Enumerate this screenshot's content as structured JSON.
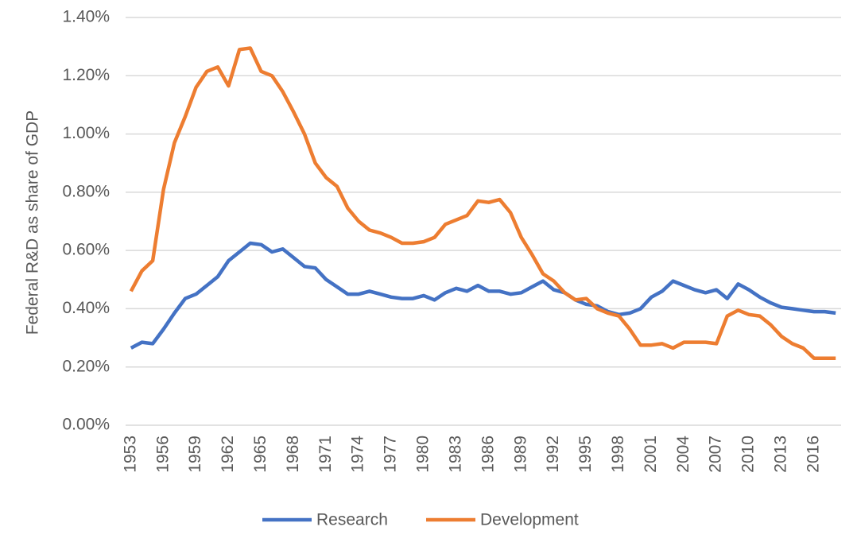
{
  "chart_data": {
    "type": "line",
    "y_label": "Federal R&D as share of GDP",
    "x": [
      1953,
      1954,
      1955,
      1956,
      1957,
      1958,
      1959,
      1960,
      1961,
      1962,
      1963,
      1964,
      1965,
      1966,
      1967,
      1968,
      1969,
      1970,
      1971,
      1972,
      1973,
      1974,
      1975,
      1976,
      1977,
      1978,
      1979,
      1980,
      1981,
      1982,
      1983,
      1984,
      1985,
      1986,
      1987,
      1988,
      1989,
      1990,
      1991,
      1992,
      1993,
      1994,
      1995,
      1996,
      1997,
      1998,
      1999,
      2000,
      2001,
      2002,
      2003,
      2004,
      2005,
      2006,
      2007,
      2008,
      2009,
      2010,
      2011,
      2012,
      2013,
      2014,
      2015,
      2016,
      2017,
      2018
    ],
    "series": [
      {
        "name": "Research",
        "color": "#4472c4",
        "values": [
          0.265,
          0.285,
          0.28,
          0.33,
          0.385,
          0.435,
          0.45,
          0.48,
          0.51,
          0.565,
          0.595,
          0.625,
          0.62,
          0.595,
          0.605,
          0.575,
          0.545,
          0.54,
          0.5,
          0.475,
          0.45,
          0.45,
          0.46,
          0.45,
          0.44,
          0.435,
          0.435,
          0.445,
          0.43,
          0.455,
          0.47,
          0.46,
          0.48,
          0.46,
          0.46,
          0.45,
          0.455,
          0.475,
          0.495,
          0.465,
          0.455,
          0.43,
          0.415,
          0.41,
          0.39,
          0.38,
          0.385,
          0.4,
          0.44,
          0.46,
          0.495,
          0.48,
          0.465,
          0.455,
          0.465,
          0.435,
          0.485,
          0.465,
          0.44,
          0.42,
          0.405,
          0.4,
          0.395,
          0.39,
          0.39,
          0.385
        ]
      },
      {
        "name": "Development",
        "color": "#ed7d31",
        "values": [
          0.46,
          0.53,
          0.565,
          0.81,
          0.97,
          1.06,
          1.16,
          1.215,
          1.23,
          1.165,
          1.29,
          1.295,
          1.215,
          1.2,
          1.145,
          1.075,
          1.0,
          0.9,
          0.85,
          0.82,
          0.745,
          0.7,
          0.67,
          0.66,
          0.645,
          0.625,
          0.625,
          0.63,
          0.645,
          0.69,
          0.705,
          0.72,
          0.77,
          0.765,
          0.775,
          0.73,
          0.645,
          0.585,
          0.52,
          0.495,
          0.455,
          0.43,
          0.435,
          0.4,
          0.385,
          0.375,
          0.33,
          0.275,
          0.275,
          0.28,
          0.265,
          0.285,
          0.285,
          0.285,
          0.28,
          0.375,
          0.395,
          0.38,
          0.375,
          0.345,
          0.305,
          0.28,
          0.265,
          0.23,
          0.23,
          0.23
        ]
      }
    ],
    "xlim": [
      1952.5,
      2018.5
    ],
    "xticks": [
      1953,
      1956,
      1959,
      1962,
      1965,
      1968,
      1971,
      1974,
      1977,
      1980,
      1983,
      1986,
      1989,
      1992,
      1995,
      1998,
      2001,
      2004,
      2007,
      2010,
      2013,
      2016
    ],
    "ylim": [
      0,
      1.4
    ],
    "yticks": [
      {
        "value": 0,
        "label": "0.00%"
      },
      {
        "value": 0.2,
        "label": "0.20%"
      },
      {
        "value": 0.4,
        "label": "0.40%"
      },
      {
        "value": 0.6,
        "label": "0.60%"
      },
      {
        "value": 0.8,
        "label": "0.80%"
      },
      {
        "value": 1.0,
        "label": "1.00%"
      },
      {
        "value": 1.2,
        "label": "1.20%"
      },
      {
        "value": 1.4,
        "label": "1.40%"
      }
    ],
    "grid": true,
    "legend": "bottom"
  }
}
